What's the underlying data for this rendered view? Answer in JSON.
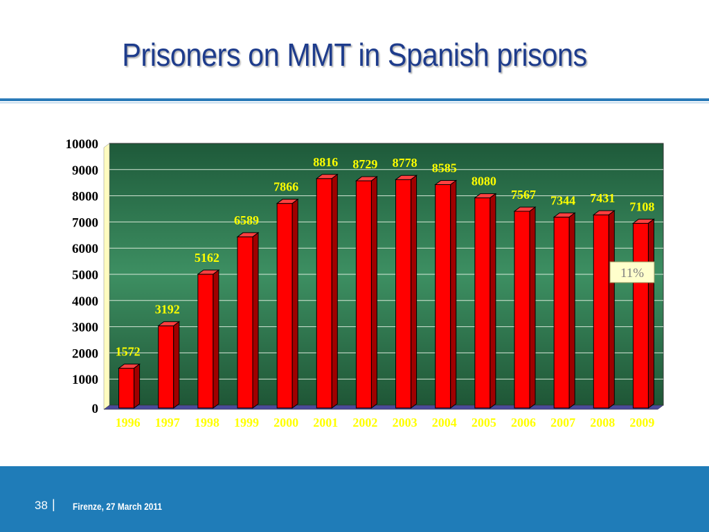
{
  "slide": {
    "title": "Prisoners on MMT in Spanish prisons",
    "page_number": "38",
    "separator": "|",
    "footer_text": "Firenze, 27 March 2011"
  },
  "colors": {
    "title": "#1e3c8c",
    "bar": "#ff0000",
    "plot_top": "#1e5a3a",
    "plot_mid": "#3d8f62",
    "data_label": "#ffff00",
    "footer": "#1f7cb8",
    "callout_bg": "#ffffcc",
    "callout_text": "#808080"
  },
  "chart_data": {
    "type": "bar",
    "categories": [
      "1996",
      "1997",
      "1998",
      "1999",
      "2000",
      "2001",
      "2002",
      "2003",
      "2004",
      "2005",
      "2006",
      "2007",
      "2008",
      "2009"
    ],
    "values": [
      1572,
      3192,
      5162,
      6589,
      7866,
      8816,
      8729,
      8778,
      8585,
      8080,
      7567,
      7344,
      7431,
      7108
    ],
    "data_labels": [
      "1572",
      "3192",
      "5162",
      "6589",
      "7866",
      "8816",
      "8729",
      "8778",
      "8585",
      "8080",
      "7567",
      "7344",
      "7431",
      "7108"
    ],
    "y_ticks": [
      "0",
      "1000",
      "2000",
      "3000",
      "4000",
      "5000",
      "6000",
      "7000",
      "8000",
      "9000",
      "10000"
    ],
    "ylim": [
      0,
      10000
    ],
    "grid": true,
    "annotation": "11%"
  }
}
